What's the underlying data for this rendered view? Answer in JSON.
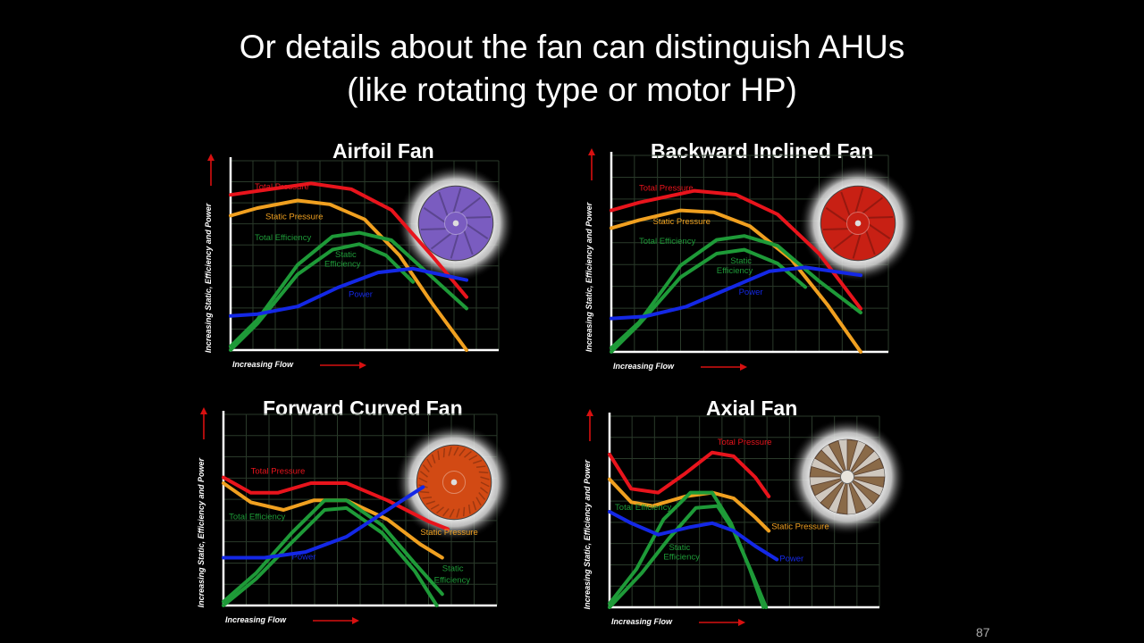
{
  "slide": {
    "title_line1": "Or details about the fan can distinguish AHUs",
    "title_line2": "(like rotating type or motor HP)",
    "page_number": "87"
  },
  "colors": {
    "total_pressure": "#e8141c",
    "static_pressure": "#f0a020",
    "total_efficiency": "#1e9a38",
    "static_efficiency": "#1e9a38",
    "power": "#1428e6",
    "grid": "#2a3a2a",
    "axis": "#ffffff",
    "arrow": "#d81010"
  },
  "chart_data": [
    {
      "type": "line",
      "title": "Airfoil Fan",
      "xlabel": "Increasing Flow",
      "ylabel": "Increasing Static, Efficiency and Power",
      "impeller_icon": "purple-airfoil-impeller-icon",
      "impeller_color": "#7a5cc0",
      "series": [
        {
          "name": "Total Pressure",
          "key": "total_pressure",
          "points": [
            [
              0,
              0.82
            ],
            [
              0.1,
              0.84
            ],
            [
              0.3,
              0.88
            ],
            [
              0.45,
              0.85
            ],
            [
              0.6,
              0.74
            ],
            [
              0.75,
              0.5
            ],
            [
              0.88,
              0.28
            ]
          ]
        },
        {
          "name": "Static Pressure",
          "key": "static_pressure",
          "points": [
            [
              0,
              0.71
            ],
            [
              0.1,
              0.75
            ],
            [
              0.25,
              0.79
            ],
            [
              0.37,
              0.77
            ],
            [
              0.5,
              0.69
            ],
            [
              0.63,
              0.5
            ],
            [
              0.75,
              0.25
            ],
            [
              0.88,
              0.0
            ]
          ]
        },
        {
          "name": "Total Efficiency",
          "key": "total_efficiency",
          "points": [
            [
              0,
              0.02
            ],
            [
              0.1,
              0.16
            ],
            [
              0.25,
              0.45
            ],
            [
              0.38,
              0.6
            ],
            [
              0.48,
              0.62
            ],
            [
              0.6,
              0.58
            ],
            [
              0.74,
              0.4
            ],
            [
              0.88,
              0.22
            ]
          ]
        },
        {
          "name": "Static Efficiency",
          "key": "static_efficiency",
          "points": [
            [
              0,
              0.0
            ],
            [
              0.1,
              0.14
            ],
            [
              0.25,
              0.4
            ],
            [
              0.38,
              0.53
            ],
            [
              0.48,
              0.56
            ],
            [
              0.58,
              0.5
            ],
            [
              0.68,
              0.36
            ]
          ]
        },
        {
          "name": "Power",
          "key": "power",
          "points": [
            [
              0,
              0.18
            ],
            [
              0.1,
              0.19
            ],
            [
              0.25,
              0.23
            ],
            [
              0.4,
              0.33
            ],
            [
              0.55,
              0.41
            ],
            [
              0.68,
              0.43
            ],
            [
              0.88,
              0.37
            ]
          ]
        }
      ],
      "labels": [
        {
          "text": "Total Pressure",
          "key": "total_pressure",
          "at": [
            0.09,
            0.85
          ]
        },
        {
          "text": "Static Pressure",
          "key": "static_pressure",
          "at": [
            0.13,
            0.69
          ]
        },
        {
          "text": "Total Efficiency",
          "key": "total_efficiency",
          "at": [
            0.09,
            0.58
          ]
        },
        {
          "text": "Static",
          "key": "static_efficiency",
          "at": [
            0.39,
            0.49
          ]
        },
        {
          "text": "Efficiency",
          "key": "static_efficiency",
          "at": [
            0.35,
            0.44
          ]
        },
        {
          "text": "Power",
          "key": "power",
          "at": [
            0.44,
            0.28
          ]
        }
      ]
    },
    {
      "type": "line",
      "title": "Backward Inclined Fan",
      "xlabel": "Increasing Flow",
      "ylabel": "Increasing Static, Efficiency and Power",
      "impeller_icon": "red-backward-inclined-impeller-icon",
      "impeller_color": "#c82014",
      "series": [
        {
          "name": "Total Pressure",
          "key": "total_pressure",
          "points": [
            [
              0,
              0.72
            ],
            [
              0.1,
              0.76
            ],
            [
              0.3,
              0.82
            ],
            [
              0.45,
              0.8
            ],
            [
              0.6,
              0.7
            ],
            [
              0.75,
              0.5
            ],
            [
              0.9,
              0.22
            ]
          ]
        },
        {
          "name": "Static Pressure",
          "key": "static_pressure",
          "points": [
            [
              0,
              0.63
            ],
            [
              0.1,
              0.67
            ],
            [
              0.25,
              0.72
            ],
            [
              0.37,
              0.71
            ],
            [
              0.5,
              0.64
            ],
            [
              0.65,
              0.47
            ],
            [
              0.78,
              0.24
            ],
            [
              0.9,
              0.0
            ]
          ]
        },
        {
          "name": "Total Efficiency",
          "key": "total_efficiency",
          "points": [
            [
              0,
              0.02
            ],
            [
              0.1,
              0.15
            ],
            [
              0.25,
              0.44
            ],
            [
              0.38,
              0.57
            ],
            [
              0.48,
              0.59
            ],
            [
              0.6,
              0.54
            ],
            [
              0.75,
              0.36
            ],
            [
              0.9,
              0.2
            ]
          ]
        },
        {
          "name": "Static Efficiency",
          "key": "static_efficiency",
          "points": [
            [
              0,
              0.0
            ],
            [
              0.1,
              0.14
            ],
            [
              0.25,
              0.38
            ],
            [
              0.38,
              0.5
            ],
            [
              0.48,
              0.52
            ],
            [
              0.6,
              0.45
            ],
            [
              0.7,
              0.33
            ]
          ]
        },
        {
          "name": "Power",
          "key": "power",
          "points": [
            [
              0,
              0.17
            ],
            [
              0.12,
              0.18
            ],
            [
              0.27,
              0.23
            ],
            [
              0.42,
              0.32
            ],
            [
              0.57,
              0.41
            ],
            [
              0.7,
              0.43
            ],
            [
              0.9,
              0.39
            ]
          ]
        }
      ],
      "labels": [
        {
          "text": "Total Pressure",
          "key": "total_pressure",
          "at": [
            0.1,
            0.82
          ]
        },
        {
          "text": "Static Pressure",
          "key": "static_pressure",
          "at": [
            0.15,
            0.65
          ]
        },
        {
          "text": "Total Efficiency",
          "key": "total_efficiency",
          "at": [
            0.1,
            0.55
          ]
        },
        {
          "text": "Static",
          "key": "static_efficiency",
          "at": [
            0.43,
            0.45
          ]
        },
        {
          "text": "Efficiency",
          "key": "static_efficiency",
          "at": [
            0.38,
            0.4
          ]
        },
        {
          "text": "Power",
          "key": "power",
          "at": [
            0.46,
            0.29
          ]
        }
      ]
    },
    {
      "type": "line",
      "title": "Forward Curved Fan",
      "xlabel": "Increasing Flow",
      "ylabel": "Increasing Static, Efficiency and Power",
      "impeller_icon": "orange-forward-curved-impeller-icon",
      "impeller_color": "#d24a14",
      "series": [
        {
          "name": "Total Pressure",
          "key": "total_pressure",
          "points": [
            [
              0,
              0.67
            ],
            [
              0.1,
              0.59
            ],
            [
              0.2,
              0.59
            ],
            [
              0.32,
              0.64
            ],
            [
              0.45,
              0.64
            ],
            [
              0.6,
              0.55
            ],
            [
              0.75,
              0.44
            ],
            [
              0.82,
              0.4
            ]
          ]
        },
        {
          "name": "Static Pressure",
          "key": "static_pressure",
          "points": [
            [
              0,
              0.64
            ],
            [
              0.1,
              0.54
            ],
            [
              0.22,
              0.5
            ],
            [
              0.33,
              0.55
            ],
            [
              0.45,
              0.55
            ],
            [
              0.6,
              0.45
            ],
            [
              0.72,
              0.32
            ],
            [
              0.8,
              0.25
            ]
          ]
        },
        {
          "name": "Total Efficiency",
          "key": "total_efficiency",
          "points": [
            [
              0,
              0.02
            ],
            [
              0.12,
              0.17
            ],
            [
              0.25,
              0.38
            ],
            [
              0.37,
              0.55
            ],
            [
              0.45,
              0.55
            ],
            [
              0.58,
              0.42
            ],
            [
              0.7,
              0.22
            ],
            [
              0.8,
              0.06
            ]
          ]
        },
        {
          "name": "Static Efficiency",
          "key": "static_efficiency",
          "points": [
            [
              0,
              0.0
            ],
            [
              0.12,
              0.14
            ],
            [
              0.25,
              0.33
            ],
            [
              0.37,
              0.5
            ],
            [
              0.45,
              0.51
            ],
            [
              0.58,
              0.38
            ],
            [
              0.7,
              0.18
            ],
            [
              0.78,
              0.0
            ]
          ]
        },
        {
          "name": "Power",
          "key": "power",
          "points": [
            [
              0,
              0.25
            ],
            [
              0.15,
              0.25
            ],
            [
              0.3,
              0.28
            ],
            [
              0.45,
              0.36
            ],
            [
              0.6,
              0.5
            ],
            [
              0.73,
              0.62
            ]
          ]
        }
      ],
      "labels": [
        {
          "text": "Total Pressure",
          "key": "total_pressure",
          "at": [
            0.1,
            0.69
          ]
        },
        {
          "text": "Total Efficiency",
          "key": "total_efficiency",
          "at": [
            0.02,
            0.45
          ]
        },
        {
          "text": "Static Pressure",
          "key": "static_pressure",
          "at": [
            0.72,
            0.37
          ]
        },
        {
          "text": "Power",
          "key": "power",
          "at": [
            0.25,
            0.24
          ]
        },
        {
          "text": "Static",
          "key": "static_efficiency",
          "at": [
            0.8,
            0.18
          ]
        },
        {
          "text": "Efficiency",
          "key": "static_efficiency",
          "at": [
            0.77,
            0.12
          ]
        }
      ]
    },
    {
      "type": "line",
      "title": "Axial Fan",
      "xlabel": "Increasing Flow",
      "ylabel": "Increasing Static, Efficiency and Power",
      "impeller_icon": "axial-fan-blades-icon",
      "impeller_color": "#8a6a48",
      "series": [
        {
          "name": "Total Pressure",
          "key": "total_pressure",
          "points": [
            [
              0,
              0.8
            ],
            [
              0.08,
              0.62
            ],
            [
              0.18,
              0.6
            ],
            [
              0.28,
              0.7
            ],
            [
              0.38,
              0.81
            ],
            [
              0.46,
              0.79
            ],
            [
              0.54,
              0.68
            ],
            [
              0.59,
              0.58
            ]
          ]
        },
        {
          "name": "Static Pressure",
          "key": "static_pressure",
          "points": [
            [
              0,
              0.67
            ],
            [
              0.08,
              0.55
            ],
            [
              0.16,
              0.53
            ],
            [
              0.28,
              0.58
            ],
            [
              0.38,
              0.6
            ],
            [
              0.46,
              0.57
            ],
            [
              0.54,
              0.47
            ],
            [
              0.59,
              0.4
            ]
          ]
        },
        {
          "name": "Total Efficiency",
          "key": "total_efficiency",
          "points": [
            [
              0,
              0.02
            ],
            [
              0.1,
              0.2
            ],
            [
              0.2,
              0.46
            ],
            [
              0.3,
              0.6
            ],
            [
              0.38,
              0.6
            ],
            [
              0.45,
              0.44
            ],
            [
              0.52,
              0.2
            ],
            [
              0.57,
              0.0
            ]
          ]
        },
        {
          "name": "Static Efficiency",
          "key": "static_efficiency",
          "points": [
            [
              0,
              0.0
            ],
            [
              0.12,
              0.18
            ],
            [
              0.22,
              0.36
            ],
            [
              0.32,
              0.52
            ],
            [
              0.4,
              0.53
            ],
            [
              0.46,
              0.4
            ],
            [
              0.53,
              0.17
            ],
            [
              0.58,
              0.0
            ]
          ]
        },
        {
          "name": "Power",
          "key": "power",
          "points": [
            [
              0,
              0.5
            ],
            [
              0.08,
              0.44
            ],
            [
              0.18,
              0.38
            ],
            [
              0.3,
              0.42
            ],
            [
              0.38,
              0.44
            ],
            [
              0.46,
              0.4
            ],
            [
              0.54,
              0.32
            ],
            [
              0.62,
              0.25
            ]
          ]
        }
      ],
      "labels": [
        {
          "text": "Total Pressure",
          "key": "total_pressure",
          "at": [
            0.4,
            0.85
          ]
        },
        {
          "text": "Total Efficiency",
          "key": "total_efficiency",
          "at": [
            0.02,
            0.51
          ]
        },
        {
          "text": "Static Pressure",
          "key": "static_pressure",
          "at": [
            0.6,
            0.41
          ]
        },
        {
          "text": "Power",
          "key": "power",
          "at": [
            0.63,
            0.24
          ]
        },
        {
          "text": "Static",
          "key": "static_efficiency",
          "at": [
            0.22,
            0.3
          ]
        },
        {
          "text": "Efficiency",
          "key": "static_efficiency",
          "at": [
            0.2,
            0.25
          ]
        }
      ]
    }
  ]
}
